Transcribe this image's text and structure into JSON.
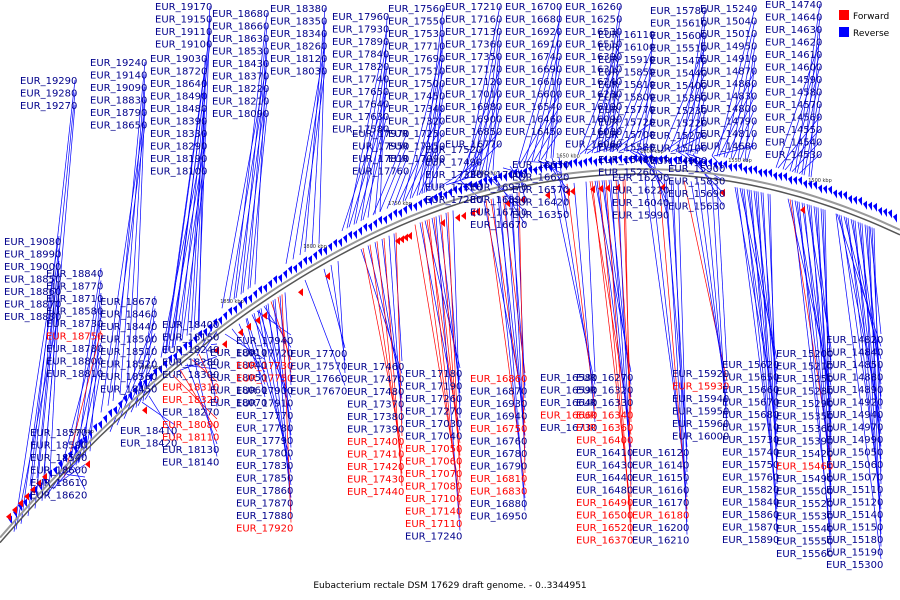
{
  "caption": "Eubacterium rectale DSM 17629 draft genome. - 0..3344951",
  "legend": [
    {
      "label": "Forward",
      "color": "#ff0000"
    },
    {
      "label": "Reverse",
      "color": "#0000ff"
    }
  ],
  "colors": {
    "forward": "#ff0000",
    "reverse": "#0000ff",
    "backbone": "#999999"
  },
  "ticks": [
    "1950 kbp",
    "1900 kbp",
    "1850 kbp",
    "1800 kbp",
    "1750 kbp",
    "1700 kbp",
    "1650 kbp",
    "1600 kbp",
    "1550 kbp",
    "1500 kbp"
  ],
  "top_labels": [
    [
      "EUR_19290",
      "EUR_19280",
      "EUR_19270"
    ],
    [
      "EUR_19240",
      "EUR_19140",
      "EUR_19090",
      "EUR_18830",
      "EUR_18790",
      "EUR_18650"
    ],
    [
      "EUR_19170",
      "EUR_19150",
      "EUR_19110",
      "EUR_19100"
    ],
    [
      "EUR_19030",
      "EUR_18720",
      "EUR_18640",
      "EUR_18490",
      "EUR_18480",
      "EUR_18390",
      "EUR_18330",
      "EUR_18290",
      "EUR_18190",
      "EUR_18100"
    ],
    [
      "EUR_18680",
      "EUR_18660",
      "EUR_18630",
      "EUR_18530",
      "EUR_18430",
      "EUR_18370",
      "EUR_18220",
      "EUR_18210",
      "EUR_18090"
    ],
    [
      "EUR_18380",
      "EUR_18350",
      "EUR_18340",
      "EUR_18260",
      "EUR_18120",
      "EUR_18030"
    ],
    [
      "EUR_17960",
      "EUR_17930",
      "EUR_17890",
      "EUR_17840",
      "EUR_17820",
      "EUR_17740",
      "EUR_17650",
      "EUR_17640",
      "EUR_17630",
      "EUR_17580"
    ],
    [
      "EUR_17970",
      "EUR_17950",
      "EUR_17810",
      "EUR_17760"
    ],
    [
      "EUR_17560",
      "EUR_17550",
      "EUR_17530",
      "EUR_17710",
      "EUR_17690",
      "EUR_17510",
      "EUR_17500",
      "EUR_17450",
      "EUR_17340",
      "EUR_17320",
      "EUR_17250",
      "EUR_17150",
      "EUR_17090"
    ],
    [
      "EUR_17520",
      "EUR_17490",
      "EUR_17330",
      "EUR_17310",
      "EUR_17280"
    ],
    [
      "EUR_17210",
      "EUR_17160",
      "EUR_17130",
      "EUR_17360",
      "EUR_17350",
      "EUR_17170",
      "EUR_17120",
      "EUR_17010",
      "EUR_16980",
      "EUR_16900",
      "EUR_16850",
      "EUR_16770"
    ],
    [
      "EUR_17000",
      "EUR_16970",
      "EUR_16890",
      "EUR_16710",
      "EUR_16670"
    ],
    [
      "EUR_16700",
      "EUR_16680",
      "EUR_16920",
      "EUR_16910",
      "EUR_16740",
      "EUR_16690",
      "EUR_16610",
      "EUR_16600",
      "EUR_16540",
      "EUR_16460",
      "EUR_16450"
    ],
    [
      "EUR_16630",
      "EUR_16620",
      "EUR_16570",
      "EUR_16420",
      "EUR_16350"
    ],
    [
      "EUR_16260",
      "EUR_16250",
      "EUR_16530",
      "EUR_16510",
      "EUR_16390",
      "EUR_16310",
      "EUR_16240",
      "EUR_16230",
      "EUR_16190",
      "EUR_16090",
      "EUR_16080",
      "EUR_16060"
    ],
    [
      "EUR_16110",
      "EUR_16100",
      "EUR_15910",
      "EUR_15850",
      "EUR_15810",
      "EUR_15800",
      "EUR_15770",
      "EUR_15720",
      "EUR_15700",
      "EUR_15580",
      "EUR_15480",
      "EUR_15260"
    ],
    [
      "EUR_16290",
      "EUR_16220",
      "EUR_16040",
      "EUR_15990"
    ],
    [
      "EUR_15780",
      "EUR_15610",
      "EUR_15600",
      "EUR_15510",
      "EUR_15470",
      "EUR_15440",
      "EUR_15400",
      "EUR_15380",
      "EUR_15230",
      "EUR_15220",
      "EUR_15270",
      "EUR_15100",
      "EUR_14900"
    ],
    [
      "EUR_15900",
      "EUR_15830",
      "EUR_15690",
      "EUR_15630"
    ],
    [
      "EUR_15240",
      "EUR_15040",
      "EUR_15010",
      "EUR_14950",
      "EUR_14910",
      "EUR_14870",
      "EUR_14860",
      "EUR_14830",
      "EUR_14800",
      "EUR_14790",
      "EUR_14810",
      "EUR_14680"
    ],
    [
      "EUR_14740",
      "EUR_14640",
      "EUR_14630",
      "EUR_14620",
      "EUR_14610",
      "EUR_14600",
      "EUR_14590",
      "EUR_14580",
      "EUR_14570",
      "EUR_14560",
      "EUR_14550",
      "EUR_14540",
      "EUR_14530"
    ]
  ],
  "bottom_labels": [
    [
      "EUR_19080",
      "EUR_18990",
      "EUR_19000",
      "EUR_18850",
      "EUR_18860",
      "EUR_18870",
      "EUR_18880"
    ],
    [
      "EUR_18840",
      "EUR_18770",
      "EUR_18710",
      "EUR_18580",
      "EUR_18730",
      "EUR_18750",
      "EUR_18780",
      "EUR_18800",
      "EUR_18810"
    ],
    [
      "EUR_18670",
      "EUR_18460",
      "EUR_18440",
      "EUR_18500",
      "EUR_18510",
      "EUR_18520",
      "EUR_18560",
      "EUR_18450"
    ],
    [
      "EUR_18570",
      "EUR_18590",
      "EUR_18540",
      "EUR_18600",
      "EUR_18610",
      "EUR_18620"
    ],
    [
      "EUR_18410",
      "EUR_18420"
    ],
    [
      "EUR_18400",
      "EUR_18150",
      "EUR_18240",
      "EUR_18280",
      "EUR_18300",
      "EUR_18310",
      "EUR_18320",
      "EUR_18270",
      "EUR_18080",
      "EUR_18110",
      "EUR_18130",
      "EUR_18140"
    ],
    [
      "EUR_18010",
      "EUR_18040",
      "EUR_18050",
      "EUR_18060",
      "EUR_18070"
    ],
    [
      "EUR_17940",
      "EUR_17720",
      "EUR_17730",
      "EUR_17750",
      "EUR_17900",
      "EUR_17910",
      "EUR_17770",
      "EUR_17780",
      "EUR_17790",
      "EUR_17800",
      "EUR_17830",
      "EUR_17850",
      "EUR_17860",
      "EUR_17870",
      "EUR_17880",
      "EUR_17920"
    ],
    [
      "EUR_17700",
      "EUR_17570",
      "EUR_17660",
      "EUR_17670"
    ],
    [
      "EUR_17460",
      "EUR_17470",
      "EUR_17480",
      "EUR_17370",
      "EUR_17380",
      "EUR_17390",
      "EUR_17400",
      "EUR_17410",
      "EUR_17420",
      "EUR_17430",
      "EUR_17440"
    ],
    [
      "EUR_17180",
      "EUR_17190",
      "EUR_17260",
      "EUR_17270",
      "EUR_17030",
      "EUR_17040",
      "EUR_17050",
      "EUR_17060",
      "EUR_17070",
      "EUR_17080",
      "EUR_17100",
      "EUR_17140",
      "EUR_17110",
      "EUR_17240"
    ],
    [
      "EUR_16860",
      "EUR_16870",
      "EUR_16930",
      "EUR_16940",
      "EUR_16750",
      "EUR_16760",
      "EUR_16780",
      "EUR_16790",
      "EUR_16810",
      "EUR_16830",
      "EUR_16880",
      "EUR_16950"
    ],
    [
      "EUR_16580",
      "EUR_16590",
      "EUR_16640",
      "EUR_16660",
      "EUR_16730"
    ],
    [
      "EUR_16270",
      "EUR_16320",
      "EUR_16330",
      "EUR_16340",
      "EUR_16360",
      "EUR_16400",
      "EUR_16410",
      "EUR_16430",
      "EUR_16440",
      "EUR_16480",
      "EUR_16490",
      "EUR_16500",
      "EUR_16520",
      "EUR_16370"
    ],
    [
      "EUR_16120",
      "EUR_16140",
      "EUR_16150",
      "EUR_16160",
      "EUR_16170",
      "EUR_16180",
      "EUR_16200",
      "EUR_16210"
    ],
    [
      "EUR_15920",
      "EUR_15930",
      "EUR_15940",
      "EUR_15950",
      "EUR_15960",
      "EUR_16000"
    ],
    [
      "EUR_15620",
      "EUR_15650",
      "EUR_15660",
      "EUR_15670",
      "EUR_15680",
      "EUR_15710",
      "EUR_15730",
      "EUR_15740",
      "EUR_15750",
      "EUR_15760",
      "EUR_15820",
      "EUR_15840",
      "EUR_15860",
      "EUR_15870",
      "EUR_15890"
    ],
    [
      "EUR_15200",
      "EUR_15210",
      "EUR_15250",
      "EUR_15280",
      "EUR_15290",
      "EUR_15350",
      "EUR_15360",
      "EUR_15390",
      "EUR_15420",
      "EUR_15460",
      "EUR_15490",
      "EUR_15500",
      "EUR_15520",
      "EUR_15530",
      "EUR_15540",
      "EUR_15550",
      "EUR_15560"
    ],
    [
      "EUR_14820",
      "EUR_14840",
      "EUR_14850",
      "EUR_14880",
      "EUR_14890",
      "EUR_14920",
      "EUR_14940",
      "EUR_14970",
      "EUR_14990",
      "EUR_15050",
      "EUR_15060",
      "EUR_15070",
      "EUR_15110",
      "EUR_15120",
      "EUR_15140",
      "EUR_15150",
      "EUR_15180",
      "EUR_15190",
      "EUR_15300"
    ]
  ],
  "forward_labels": [
    "EUR_18750",
    "EUR_18310",
    "EUR_18320",
    "EUR_18080",
    "EUR_18110",
    "EUR_17730",
    "EUR_17750",
    "EUR_17920",
    "EUR_17400",
    "EUR_17410",
    "EUR_17420",
    "EUR_17430",
    "EUR_17440",
    "EUR_17050",
    "EUR_17060",
    "EUR_17070",
    "EUR_17080",
    "EUR_17100",
    "EUR_17140",
    "EUR_17110",
    "EUR_16860",
    "EUR_16750",
    "EUR_16810",
    "EUR_16830",
    "EUR_16660",
    "EUR_16340",
    "EUR_16360",
    "EUR_16400",
    "EUR_16490",
    "EUR_16500",
    "EUR_16520",
    "EUR_16370",
    "EUR_16180",
    "EUR_15930",
    "EUR_15460"
  ]
}
